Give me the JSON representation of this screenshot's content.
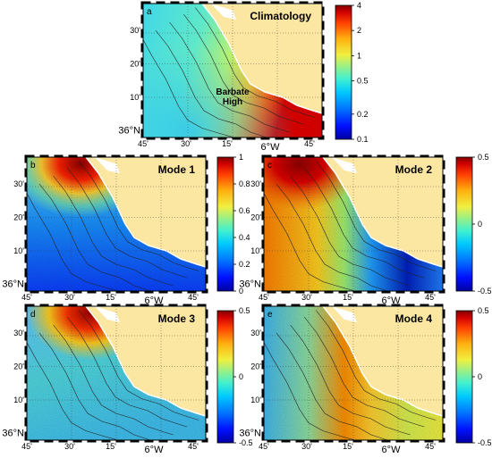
{
  "colors": {
    "land": "#fbe7a1",
    "coast": "#ffffff",
    "contour": "#222222"
  },
  "colormap": [
    "#0000a0",
    "#0010ff",
    "#0060ff",
    "#00b0ff",
    "#20e8e0",
    "#70f0a0",
    "#c0f060",
    "#fff030",
    "#ffb010",
    "#ff5000",
    "#e00000",
    "#800000"
  ],
  "panels": [
    {
      "id": "a",
      "letter": "a",
      "title": "Climatology",
      "annotation_line1": "Barbate",
      "annotation_line2": "High",
      "lat_ticks": [
        "30'",
        "20'",
        "10'",
        "36°N"
      ],
      "lon_ticks": [
        "45'",
        "30'",
        "15'",
        "6°W",
        "45'"
      ],
      "colorbar_ticks": [
        "4",
        "2",
        "1",
        "0.5",
        "0.2",
        "0.1"
      ],
      "scale": "log",
      "range": [
        0.1,
        4
      ],
      "style": "clim"
    },
    {
      "id": "b",
      "letter": "b",
      "title": "Mode 1",
      "lat_ticks": [
        "30'",
        "20'",
        "10'",
        "36°N"
      ],
      "lon_ticks": [
        "45'",
        "30'",
        "15'",
        "6°W",
        "45'"
      ],
      "colorbar_ticks": [
        "1",
        "0.8",
        "0.6",
        "0.4",
        "0.2",
        "0"
      ],
      "range": [
        0,
        1
      ],
      "style": "mode1"
    },
    {
      "id": "c",
      "letter": "c",
      "title": "Mode 2",
      "lat_ticks": [
        "30'",
        "20'",
        "10'",
        "36°N"
      ],
      "lon_ticks": [
        "45'",
        "30'",
        "15'",
        "6°W",
        "45'"
      ],
      "colorbar_ticks": [
        "0.5",
        "0",
        "-0.5"
      ],
      "range": [
        -0.5,
        0.5
      ],
      "style": "mode2"
    },
    {
      "id": "d",
      "letter": "d",
      "title": "Mode 3",
      "lat_ticks": [
        "30'",
        "20'",
        "10'",
        "36°N"
      ],
      "lon_ticks": [
        "45'",
        "30'",
        "15'",
        "6°W",
        "45'"
      ],
      "colorbar_ticks": [
        "0.5",
        "0",
        "-0.5"
      ],
      "range": [
        -0.5,
        0.5
      ],
      "style": "mode3"
    },
    {
      "id": "e",
      "letter": "e",
      "title": "Mode 4",
      "lat_ticks": [
        "30'",
        "20'",
        "10'",
        "36°N"
      ],
      "lon_ticks": [
        "45'",
        "30'",
        "15'",
        "6°W",
        "45'"
      ],
      "colorbar_ticks": [
        "0.5",
        "0",
        "-0.5"
      ],
      "range": [
        -0.5,
        0.5
      ],
      "style": "mode4"
    }
  ]
}
